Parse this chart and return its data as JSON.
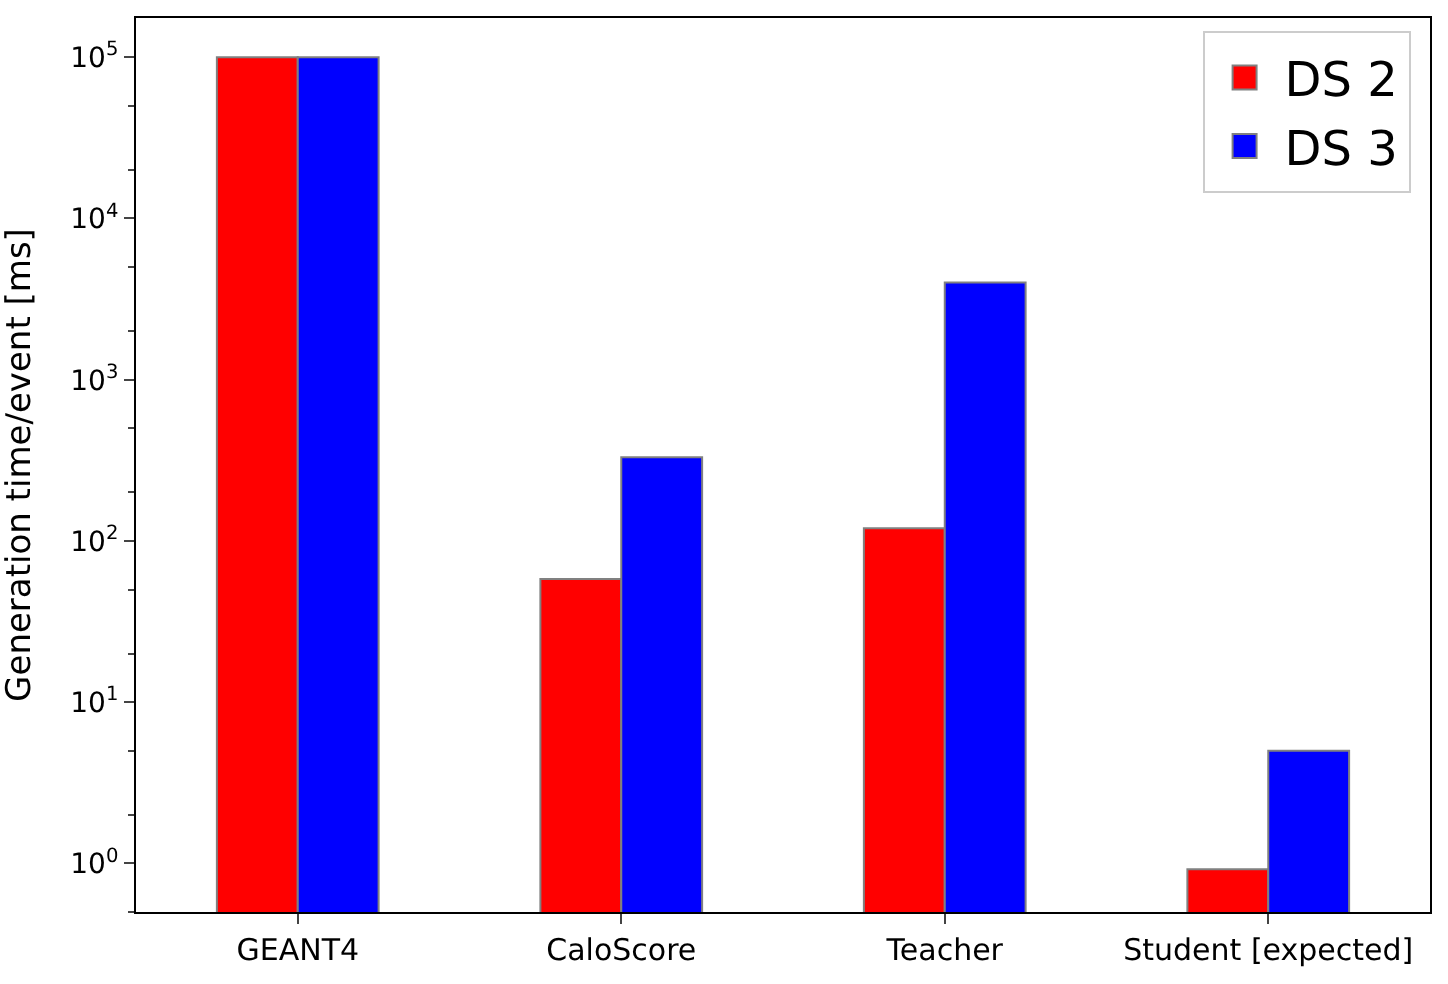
{
  "chart_data": {
    "type": "bar",
    "ylabel": "Generation time/event [ms]",
    "categories": [
      "GEANT4",
      "CaloScore",
      "Teacher",
      "Student [expected]"
    ],
    "series": [
      {
        "name": "DS 2",
        "color": "#ff0000",
        "values": [
          100000,
          58,
          120,
          0.92
        ]
      },
      {
        "name": "DS 3",
        "color": "#0000ff",
        "values": [
          100000,
          330,
          4000,
          5
        ]
      }
    ],
    "log": true,
    "ylim": [
      0.5,
      175000
    ],
    "yticks": [
      {
        "value": 1,
        "label": "10$^{0}$"
      },
      {
        "value": 10,
        "label": "10$^{1}$"
      },
      {
        "value": 100,
        "label": "10$^{2}$"
      },
      {
        "value": 1000,
        "label": "10$^{3}$"
      },
      {
        "value": 10000,
        "label": "10$^{4}$"
      },
      {
        "value": 100000,
        "label": "10$^{5}$"
      }
    ],
    "legend": "top right"
  }
}
